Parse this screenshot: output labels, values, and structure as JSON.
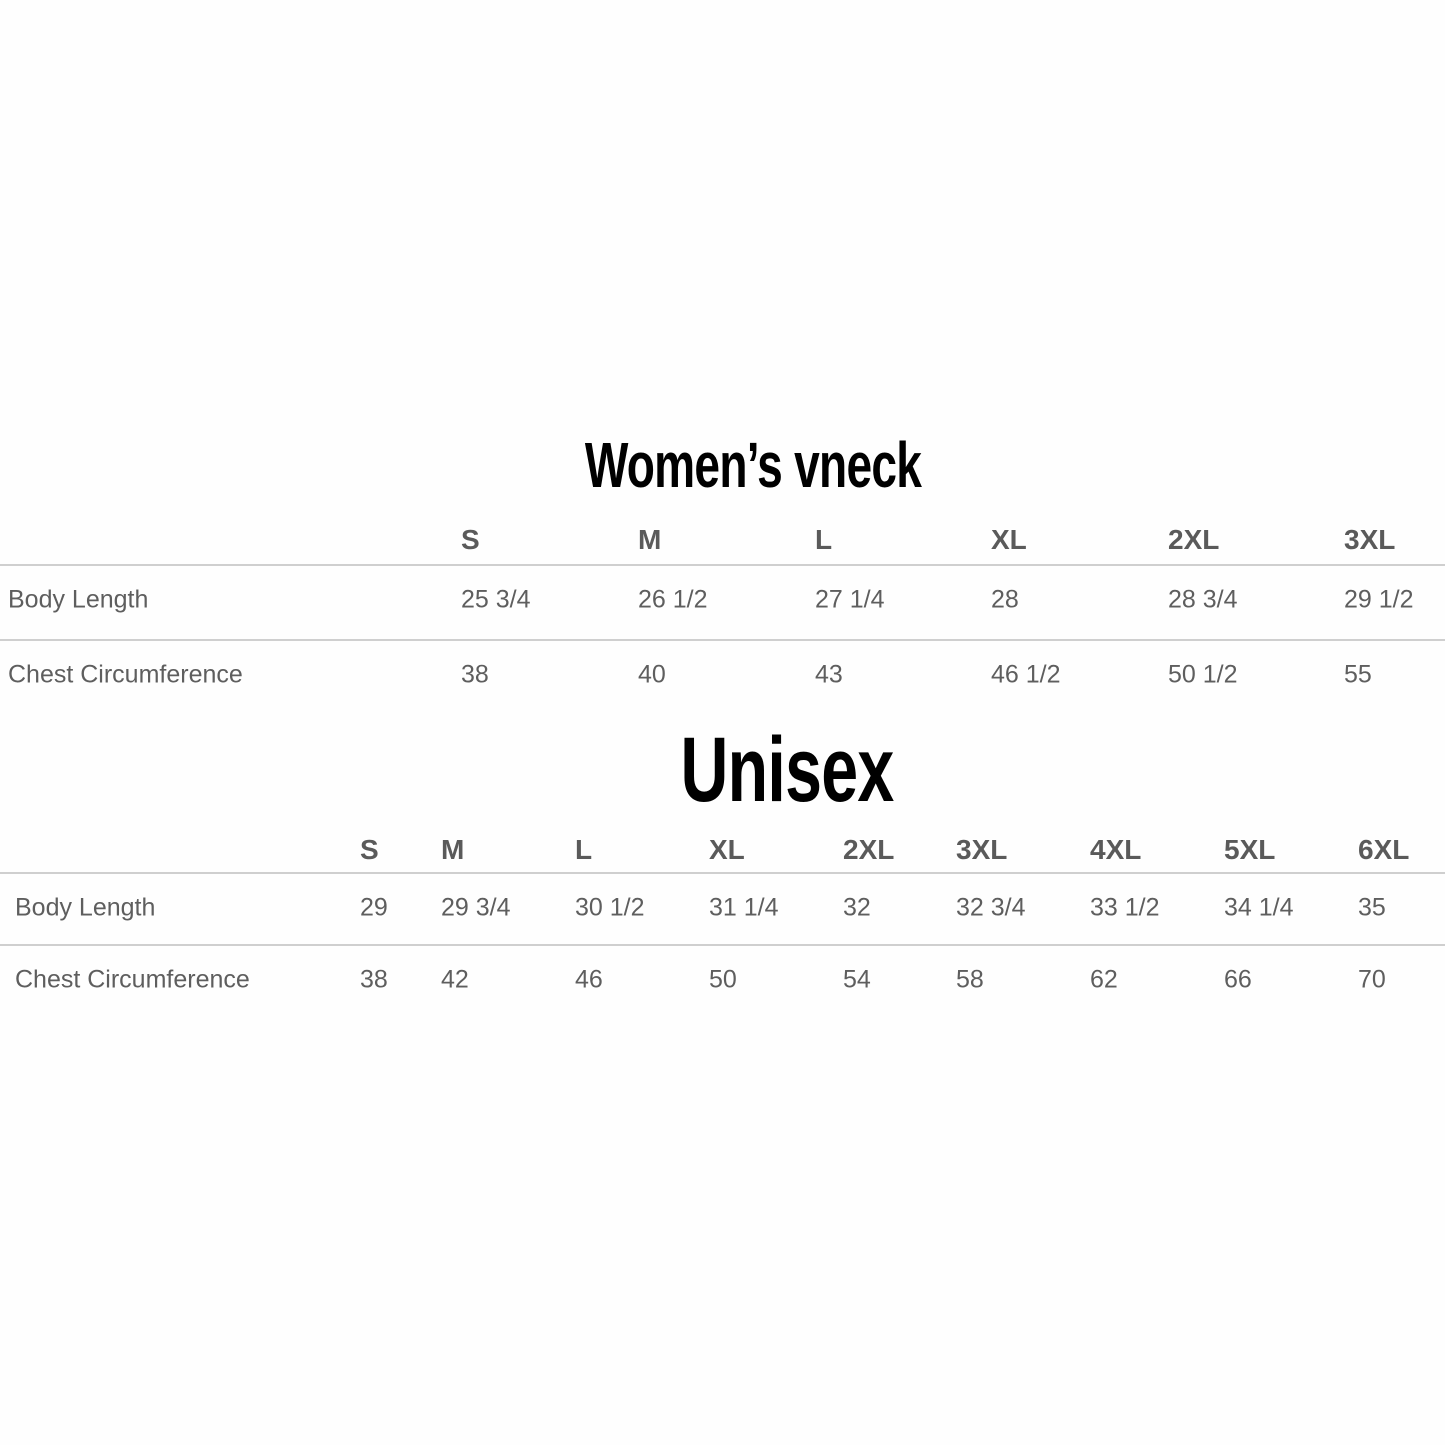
{
  "charts": [
    {
      "title": "Women’s vneck",
      "sizes": [
        "S",
        "M",
        "L",
        "XL",
        "2XL",
        "3XL"
      ],
      "rows": [
        {
          "label": "Body Length",
          "values": [
            "25 3/4",
            "26 1/2",
            "27 1/4",
            "28",
            "28 3/4",
            "29 1/2"
          ]
        },
        {
          "label": "Chest Circumference",
          "values": [
            "38",
            "40",
            "43",
            "46 1/2",
            "50 1/2",
            "55"
          ]
        }
      ]
    },
    {
      "title": "Unisex",
      "sizes": [
        "S",
        "M",
        "L",
        "XL",
        "2XL",
        "3XL",
        "4XL",
        "5XL",
        "6XL"
      ],
      "rows": [
        {
          "label": "Body Length",
          "values": [
            "29",
            "29 3/4",
            "30 1/2",
            "31 1/4",
            "32",
            "32 3/4",
            "33 1/2",
            "34 1/4",
            "35"
          ]
        },
        {
          "label": "Chest Circumference",
          "values": [
            "38",
            "42",
            "46",
            "50",
            "54",
            "58",
            "62",
            "66",
            "70"
          ]
        }
      ]
    }
  ],
  "colors": {
    "title": "#000000",
    "text": "#5e5e5e",
    "rule": "#cfcfcf"
  }
}
